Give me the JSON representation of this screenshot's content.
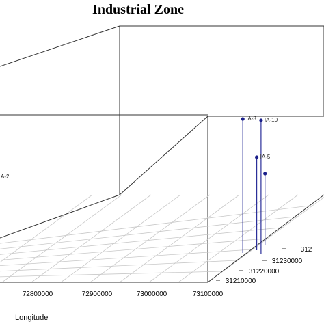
{
  "chart_data": {
    "type": "scatter",
    "projection": "3d",
    "title": "Industrial Zone",
    "xlabel": "Longitude",
    "x_ticks": [
      "72800000",
      "72900000",
      "73000000",
      "73100000"
    ],
    "y_ticks": [
      "31210000",
      "31220000",
      "31230000",
      "312"
    ],
    "points": [
      {
        "label": "IA-3",
        "x": 73160000,
        "y": 31205000
      },
      {
        "label": "IA-10",
        "x": 73195000,
        "y": 31200000
      },
      {
        "label": "IA-5",
        "x": 73180000,
        "y": 31215000
      },
      {
        "label": "",
        "x": 73185000,
        "y": 31235000
      },
      {
        "label": "A-2",
        "x": 72750000,
        "y": 31250000
      }
    ],
    "grid": true,
    "colors": {
      "stem": "#2b2f99",
      "marker": "#1a1f8a",
      "box": "#333333",
      "grid": "#c8c8c8"
    }
  }
}
